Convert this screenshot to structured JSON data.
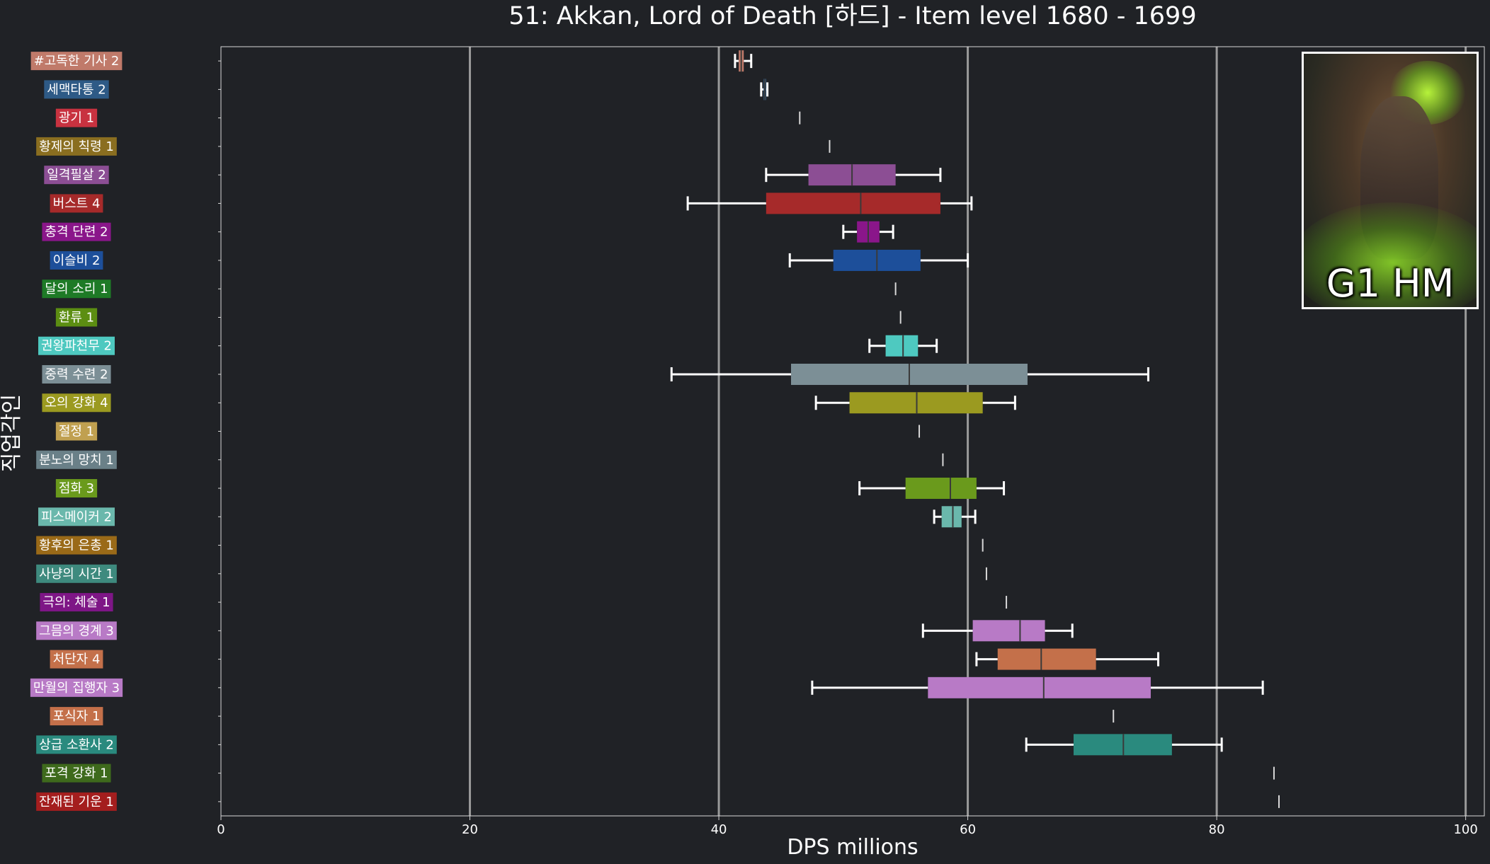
{
  "chart_data": {
    "type": "box",
    "title": "51: Akkan, Lord of Death [하드] - Item level 1680 - 1699",
    "xlabel": "DPS millions",
    "ylabel": "직업각인",
    "xlim": [
      0,
      101.5
    ],
    "xticks": [
      0,
      20,
      40,
      60,
      80,
      100
    ],
    "grid": "vertical",
    "categories": [
      {
        "label": "#고독한 기사 2",
        "color": "#c07a6a",
        "whisker_low": 41.3,
        "q1": 41.6,
        "median": 41.8,
        "q3": 42.0,
        "whisker_high": 42.6
      },
      {
        "label": "세맥타통 2",
        "color": "#2e5a86",
        "whisker_low": 43.4,
        "q1": 43.6,
        "median": 43.7,
        "q3": 43.8,
        "whisker_high": 43.9
      },
      {
        "label": "광기 1",
        "color": "#c83240",
        "whisker_low": 46.5,
        "q1": 46.5,
        "median": 46.5,
        "q3": 46.5,
        "whisker_high": 46.5
      },
      {
        "label": "황제의 칙령 1",
        "color": "#8a6e20",
        "whisker_low": 48.9,
        "q1": 48.9,
        "median": 48.9,
        "q3": 48.9,
        "whisker_high": 48.9
      },
      {
        "label": "일격필살 2",
        "color": "#8c4e94",
        "whisker_low": 43.8,
        "q1": 47.2,
        "median": 50.7,
        "q3": 54.2,
        "whisker_high": 57.8
      },
      {
        "label": "버스트 4",
        "color": "#a62a2a",
        "whisker_low": 37.5,
        "q1": 43.8,
        "median": 51.4,
        "q3": 57.8,
        "whisker_high": 60.3
      },
      {
        "label": "충격 단련 2",
        "color": "#8a168a",
        "whisker_low": 50.0,
        "q1": 51.1,
        "median": 52.0,
        "q3": 52.9,
        "whisker_high": 54.0
      },
      {
        "label": "이슬비 2",
        "color": "#1d4f9a",
        "whisker_low": 45.7,
        "q1": 49.2,
        "median": 52.7,
        "q3": 56.2,
        "whisker_high": 60.0
      },
      {
        "label": "달의 소리 1",
        "color": "#1e7a26",
        "whisker_low": 54.2,
        "q1": 54.2,
        "median": 54.2,
        "q3": 54.2,
        "whisker_high": 54.2
      },
      {
        "label": "환류 1",
        "color": "#5c8e12",
        "whisker_low": 54.6,
        "q1": 54.6,
        "median": 54.6,
        "q3": 54.6,
        "whisker_high": 54.6
      },
      {
        "label": "권왕파천무 2",
        "color": "#4ec9c0",
        "whisker_low": 52.1,
        "q1": 53.4,
        "median": 54.8,
        "q3": 56.0,
        "whisker_high": 57.5
      },
      {
        "label": "중력 수련 2",
        "color": "#7c8f96",
        "whisker_low": 36.2,
        "q1": 45.8,
        "median": 55.3,
        "q3": 64.8,
        "whisker_high": 74.5
      },
      {
        "label": "오의 강화 4",
        "color": "#9b9a20",
        "whisker_low": 47.8,
        "q1": 50.5,
        "median": 55.9,
        "q3": 61.2,
        "whisker_high": 63.8
      },
      {
        "label": "절정 1",
        "color": "#c0a050",
        "whisker_low": 56.1,
        "q1": 56.1,
        "median": 56.1,
        "q3": 56.1,
        "whisker_high": 56.1
      },
      {
        "label": "분노의 망치 1",
        "color": "#6a8088",
        "whisker_low": 58.0,
        "q1": 58.0,
        "median": 58.0,
        "q3": 58.0,
        "whisker_high": 58.0
      },
      {
        "label": "점화 3",
        "color": "#6a9a1c",
        "whisker_low": 51.3,
        "q1": 55.0,
        "median": 58.6,
        "q3": 60.7,
        "whisker_high": 62.9
      },
      {
        "label": "피스메이커 2",
        "color": "#6ab8ac",
        "whisker_low": 57.3,
        "q1": 57.9,
        "median": 58.8,
        "q3": 59.5,
        "whisker_high": 60.6
      },
      {
        "label": "황후의 은총 1",
        "color": "#9a6a18",
        "whisker_low": 61.2,
        "q1": 61.2,
        "median": 61.2,
        "q3": 61.2,
        "whisker_high": 61.2
      },
      {
        "label": "사냥의 시간 1",
        "color": "#3e8a7e",
        "whisker_low": 61.5,
        "q1": 61.5,
        "median": 61.5,
        "q3": 61.5,
        "whisker_high": 61.5
      },
      {
        "label": "극의: 체술 1",
        "color": "#7e1686",
        "whisker_low": 63.1,
        "q1": 63.1,
        "median": 63.1,
        "q3": 63.1,
        "whisker_high": 63.1
      },
      {
        "label": "그믐의 경계 3",
        "color": "#b87ac6",
        "whisker_low": 56.4,
        "q1": 60.4,
        "median": 64.2,
        "q3": 66.2,
        "whisker_high": 68.4
      },
      {
        "label": "처단자 4",
        "color": "#c4704a",
        "whisker_low": 60.7,
        "q1": 62.4,
        "median": 65.9,
        "q3": 70.3,
        "whisker_high": 75.3
      },
      {
        "label": "만월의 집행자 3",
        "color": "#b87ac6",
        "whisker_low": 47.5,
        "q1": 56.8,
        "median": 66.1,
        "q3": 74.7,
        "whisker_high": 83.7
      },
      {
        "label": "포식자 1",
        "color": "#c4704a",
        "whisker_low": 71.7,
        "q1": 71.7,
        "median": 71.7,
        "q3": 71.7,
        "whisker_high": 71.7
      },
      {
        "label": "상급 소환사 2",
        "color": "#2a8a7e",
        "whisker_low": 64.7,
        "q1": 68.5,
        "median": 72.5,
        "q3": 76.4,
        "whisker_high": 80.4
      },
      {
        "label": "포격 강화 1",
        "color": "#3e6a1c",
        "whisker_low": 84.6,
        "q1": 84.6,
        "median": 84.6,
        "q3": 84.6,
        "whisker_high": 84.6
      },
      {
        "label": "잔재된 기운 1",
        "color": "#a41e1e",
        "whisker_low": 85.0,
        "q1": 85.0,
        "median": 85.0,
        "q3": 85.0,
        "whisker_high": 85.0
      }
    ]
  },
  "boss_card": {
    "label": "G1 HM",
    "image_icon": "akkan-boss-portrait"
  }
}
